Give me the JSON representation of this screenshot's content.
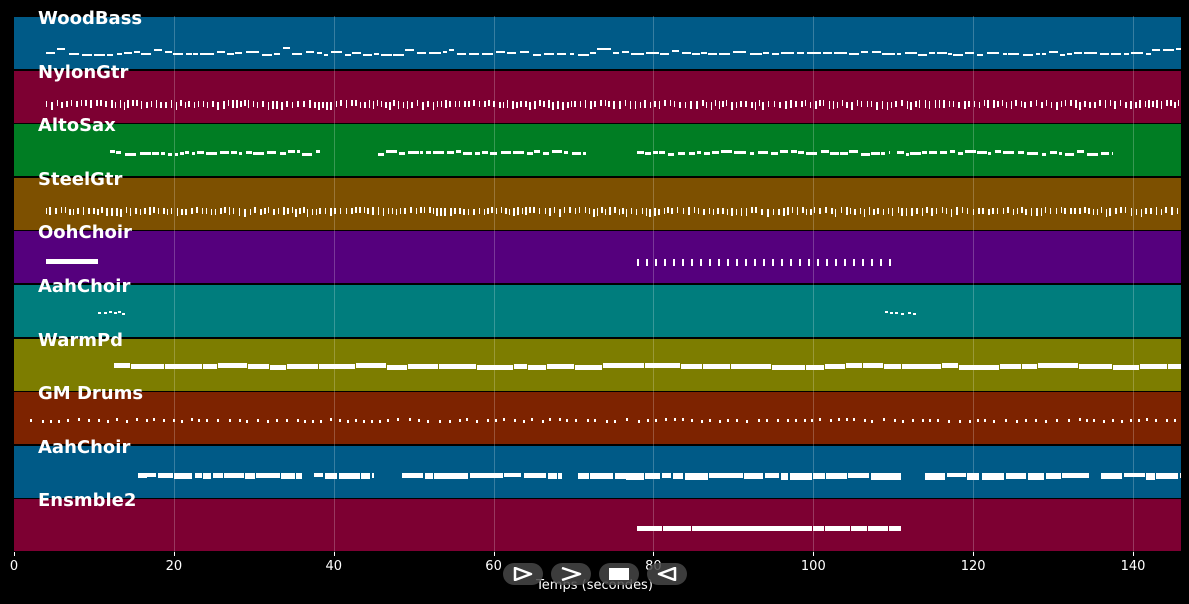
{
  "chart_data": {
    "type": "piano-roll",
    "xlabel": "Temps (secondes)",
    "xlim": [
      0,
      146
    ],
    "x_ticks": [
      0,
      20,
      40,
      60,
      80,
      100,
      120,
      140
    ],
    "grid": true,
    "tracks": [
      {
        "name": "WoodBass",
        "color": "#005A87",
        "segments": [
          [
            4,
            146
          ]
        ],
        "style": "bass"
      },
      {
        "name": "NylonGtr",
        "color": "#7D0032",
        "segments": [
          [
            4,
            146
          ]
        ],
        "style": "dense"
      },
      {
        "name": "AltoSax",
        "color": "#007D23",
        "segments": [
          [
            12,
            38.5
          ],
          [
            45.5,
            71.5
          ],
          [
            78,
            109.5
          ],
          [
            110.5,
            137.5
          ]
        ],
        "style": "melody"
      },
      {
        "name": "SteelGtr",
        "color": "#7D5000",
        "segments": [
          [
            4,
            146
          ]
        ],
        "style": "dense"
      },
      {
        "name": "OohChoir",
        "color": "#55007D",
        "segments": [
          [
            4,
            10.5
          ],
          [
            78,
            110.5
          ]
        ],
        "style": "choir"
      },
      {
        "name": "AahChoir",
        "color": "#007D7D",
        "segments": [
          [
            10.5,
            14
          ],
          [
            109,
            113
          ]
        ],
        "style": "short"
      },
      {
        "name": "WarmPd",
        "color": "#7D7D00",
        "segments": [
          [
            12.5,
            146
          ]
        ],
        "style": "pad"
      },
      {
        "name": "GM Drums",
        "color": "#7D2300",
        "segments": [
          [
            2,
            146
          ]
        ],
        "style": "drums"
      },
      {
        "name": "AahChoir",
        "color": "#005A87",
        "segments": [
          [
            15.5,
            36
          ],
          [
            37.5,
            45
          ],
          [
            48.5,
            68.5
          ],
          [
            70.5,
            111
          ],
          [
            114,
            134.5
          ],
          [
            136,
            146
          ]
        ],
        "style": "chord"
      },
      {
        "name": "Ensmble2",
        "color": "#7D0032",
        "segments": [
          [
            78,
            111
          ]
        ],
        "style": "block"
      }
    ]
  },
  "controls": {
    "play_icon": "play-outline-icon",
    "forward_icon": "forward-chevron-icon",
    "stop_icon": "stop-icon",
    "back_icon": "back-outline-icon"
  }
}
